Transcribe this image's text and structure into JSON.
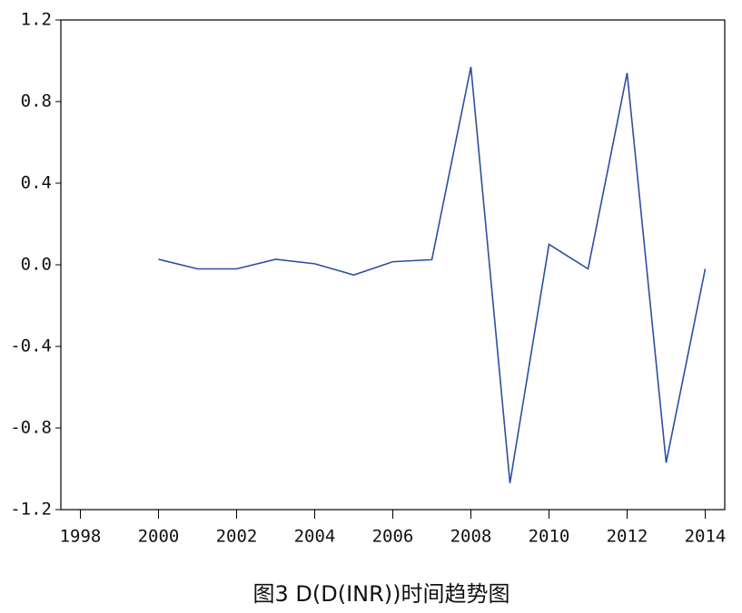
{
  "chart_data": {
    "type": "line",
    "title": "图3  D(D(INR))时间趋势图",
    "x": [
      2000,
      2001,
      2002,
      2003,
      2004,
      2005,
      2006,
      2007,
      2008,
      2009,
      2010,
      2011,
      2012,
      2013,
      2014
    ],
    "series": [
      {
        "color": "#2b4fa0",
        "values": [
          0.027,
          -0.02,
          -0.02,
          0.027,
          0.005,
          -0.05,
          0.015,
          0.025,
          0.97,
          -1.07,
          0.1,
          -0.02,
          0.94,
          -0.97,
          -0.02
        ]
      }
    ],
    "xlim": [
      1997.5,
      2014.5
    ],
    "xticks": [
      1998,
      2000,
      2002,
      2004,
      2006,
      2008,
      2010,
      2012,
      2014
    ],
    "ylim": [
      -1.2,
      1.2
    ],
    "yticks": [
      -1.2,
      -0.8,
      -0.4,
      {
        "value": 0,
        "label": "0.0"
      },
      0.4,
      0.8,
      1.2
    ]
  }
}
